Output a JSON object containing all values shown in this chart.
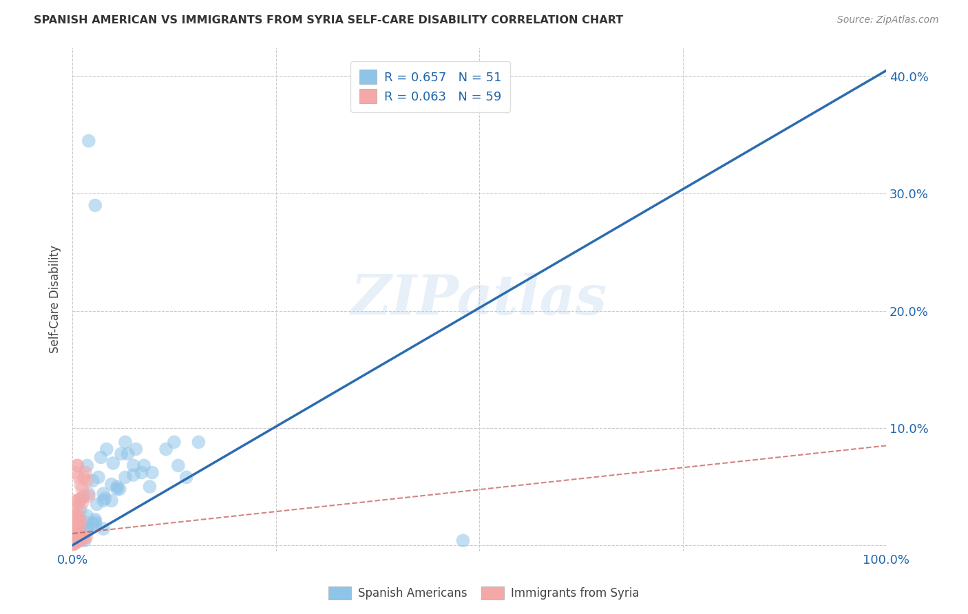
{
  "title": "SPANISH AMERICAN VS IMMIGRANTS FROM SYRIA SELF-CARE DISABILITY CORRELATION CHART",
  "source": "Source: ZipAtlas.com",
  "ylabel": "Self-Care Disability",
  "xlim": [
    0,
    1.0
  ],
  "ylim": [
    -0.005,
    0.425
  ],
  "xticks": [
    0.0,
    0.25,
    0.5,
    0.75,
    1.0
  ],
  "xticklabels": [
    "0.0%",
    "",
    "",
    "",
    "100.0%"
  ],
  "yticks": [
    0.0,
    0.1,
    0.2,
    0.3,
    0.4
  ],
  "yticklabels_right": [
    "",
    "10.0%",
    "20.0%",
    "30.0%",
    "40.0%"
  ],
  "blue_color": "#8ec4e8",
  "pink_color": "#f4a8a8",
  "blue_line_color": "#2b6cb0",
  "pink_line_color": "#c0504d",
  "legend_R_blue": "R = 0.657",
  "legend_N_blue": "N = 51",
  "legend_R_pink": "R = 0.063",
  "legend_N_pink": "N = 59",
  "watermark": "ZIPatlas",
  "background_color": "#ffffff",
  "grid_color": "#cccccc",
  "blue_scatter_x": [
    0.02,
    0.028,
    0.035,
    0.042,
    0.05,
    0.06,
    0.065,
    0.075,
    0.085,
    0.095,
    0.018,
    0.025,
    0.032,
    0.04,
    0.055,
    0.012,
    0.02,
    0.03,
    0.068,
    0.078,
    0.01,
    0.018,
    0.028,
    0.038,
    0.048,
    0.088,
    0.115,
    0.125,
    0.14,
    0.058,
    0.015,
    0.008,
    0.038,
    0.028,
    0.018,
    0.065,
    0.048,
    0.038,
    0.075,
    0.098,
    0.015,
    0.025,
    0.055,
    0.13,
    0.155,
    0.008,
    0.015,
    0.01,
    0.48,
    0.018,
    0.028
  ],
  "blue_scatter_y": [
    0.345,
    0.29,
    0.075,
    0.082,
    0.07,
    0.078,
    0.088,
    0.06,
    0.062,
    0.05,
    0.068,
    0.055,
    0.058,
    0.04,
    0.05,
    0.04,
    0.044,
    0.035,
    0.078,
    0.082,
    0.03,
    0.025,
    0.022,
    0.044,
    0.038,
    0.068,
    0.082,
    0.088,
    0.058,
    0.048,
    0.02,
    0.01,
    0.014,
    0.02,
    0.014,
    0.058,
    0.052,
    0.038,
    0.068,
    0.062,
    0.01,
    0.018,
    0.048,
    0.068,
    0.088,
    0.008,
    0.004,
    0.004,
    0.004,
    0.014,
    0.018
  ],
  "pink_scatter_x": [
    0.004,
    0.006,
    0.008,
    0.01,
    0.012,
    0.014,
    0.016,
    0.018,
    0.02,
    0.006,
    0.002,
    0.004,
    0.006,
    0.008,
    0.01,
    0.012,
    0.014,
    0.002,
    0.004,
    0.006,
    0.008,
    0.01,
    0.002,
    0.003,
    0.005,
    0.006,
    0.008,
    0.001,
    0.003,
    0.005,
    0.001,
    0.002,
    0.002,
    0.004,
    0.005,
    0.007,
    0.001,
    0.001,
    0.002,
    0.003,
    0.001,
    0.001,
    0.002,
    0.003,
    0.001,
    0.001,
    0.002,
    0.003,
    0.004,
    0.004,
    0.005,
    0.006,
    0.007,
    0.008,
    0.009,
    0.011,
    0.013,
    0.015,
    0.017
  ],
  "pink_scatter_y": [
    0.062,
    0.068,
    0.058,
    0.052,
    0.048,
    0.058,
    0.062,
    0.055,
    0.042,
    0.068,
    0.038,
    0.032,
    0.038,
    0.036,
    0.04,
    0.036,
    0.042,
    0.022,
    0.026,
    0.028,
    0.024,
    0.02,
    0.014,
    0.016,
    0.018,
    0.02,
    0.016,
    0.008,
    0.01,
    0.014,
    0.006,
    0.008,
    0.006,
    0.004,
    0.006,
    0.005,
    0.002,
    0.004,
    0.003,
    0.005,
    0.002,
    0.002,
    0.001,
    0.003,
    0.001,
    0.001,
    0.002,
    0.002,
    0.003,
    0.002,
    0.004,
    0.003,
    0.005,
    0.004,
    0.006,
    0.007,
    0.008,
    0.006,
    0.007
  ],
  "blue_line_x": [
    0.0,
    1.0
  ],
  "blue_line_y": [
    0.0,
    0.405
  ],
  "pink_line_x": [
    0.0,
    1.0
  ],
  "pink_line_y": [
    0.01,
    0.085
  ]
}
